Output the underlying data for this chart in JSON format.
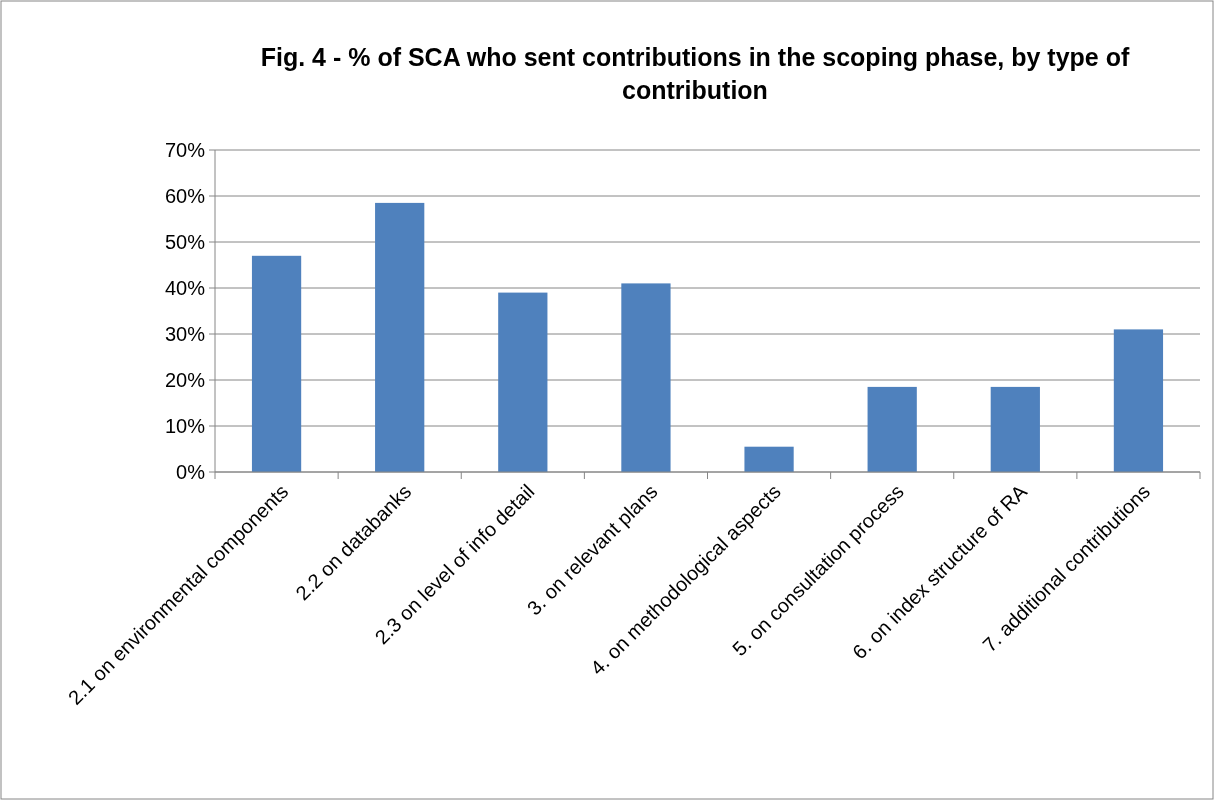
{
  "chart_data": {
    "type": "bar",
    "title": "Fig. 4 - % of SCA who sent contributions in the scoping phase, by type of contribution",
    "categories": [
      "2.1 on environmental components",
      "2.2 on databanks",
      "2.3 on level of info detail",
      "3. on relevant plans",
      "4. on methodological aspects",
      "5. on consultation process",
      "6. on index structure of RA",
      "7. additional contributions"
    ],
    "values": [
      47,
      58.5,
      39,
      41,
      5.5,
      18.5,
      18.5,
      31
    ],
    "color": "#4f81bd",
    "ylim": [
      0,
      70
    ],
    "yticks": [
      {
        "value": 0,
        "label": "0%"
      },
      {
        "value": 10,
        "label": "10%"
      },
      {
        "value": 20,
        "label": "20%"
      },
      {
        "value": 30,
        "label": "30%"
      },
      {
        "value": 40,
        "label": "40%"
      },
      {
        "value": 50,
        "label": "50%"
      },
      {
        "value": 60,
        "label": "60%"
      },
      {
        "value": 70,
        "label": "70%"
      }
    ],
    "grid": "y"
  }
}
